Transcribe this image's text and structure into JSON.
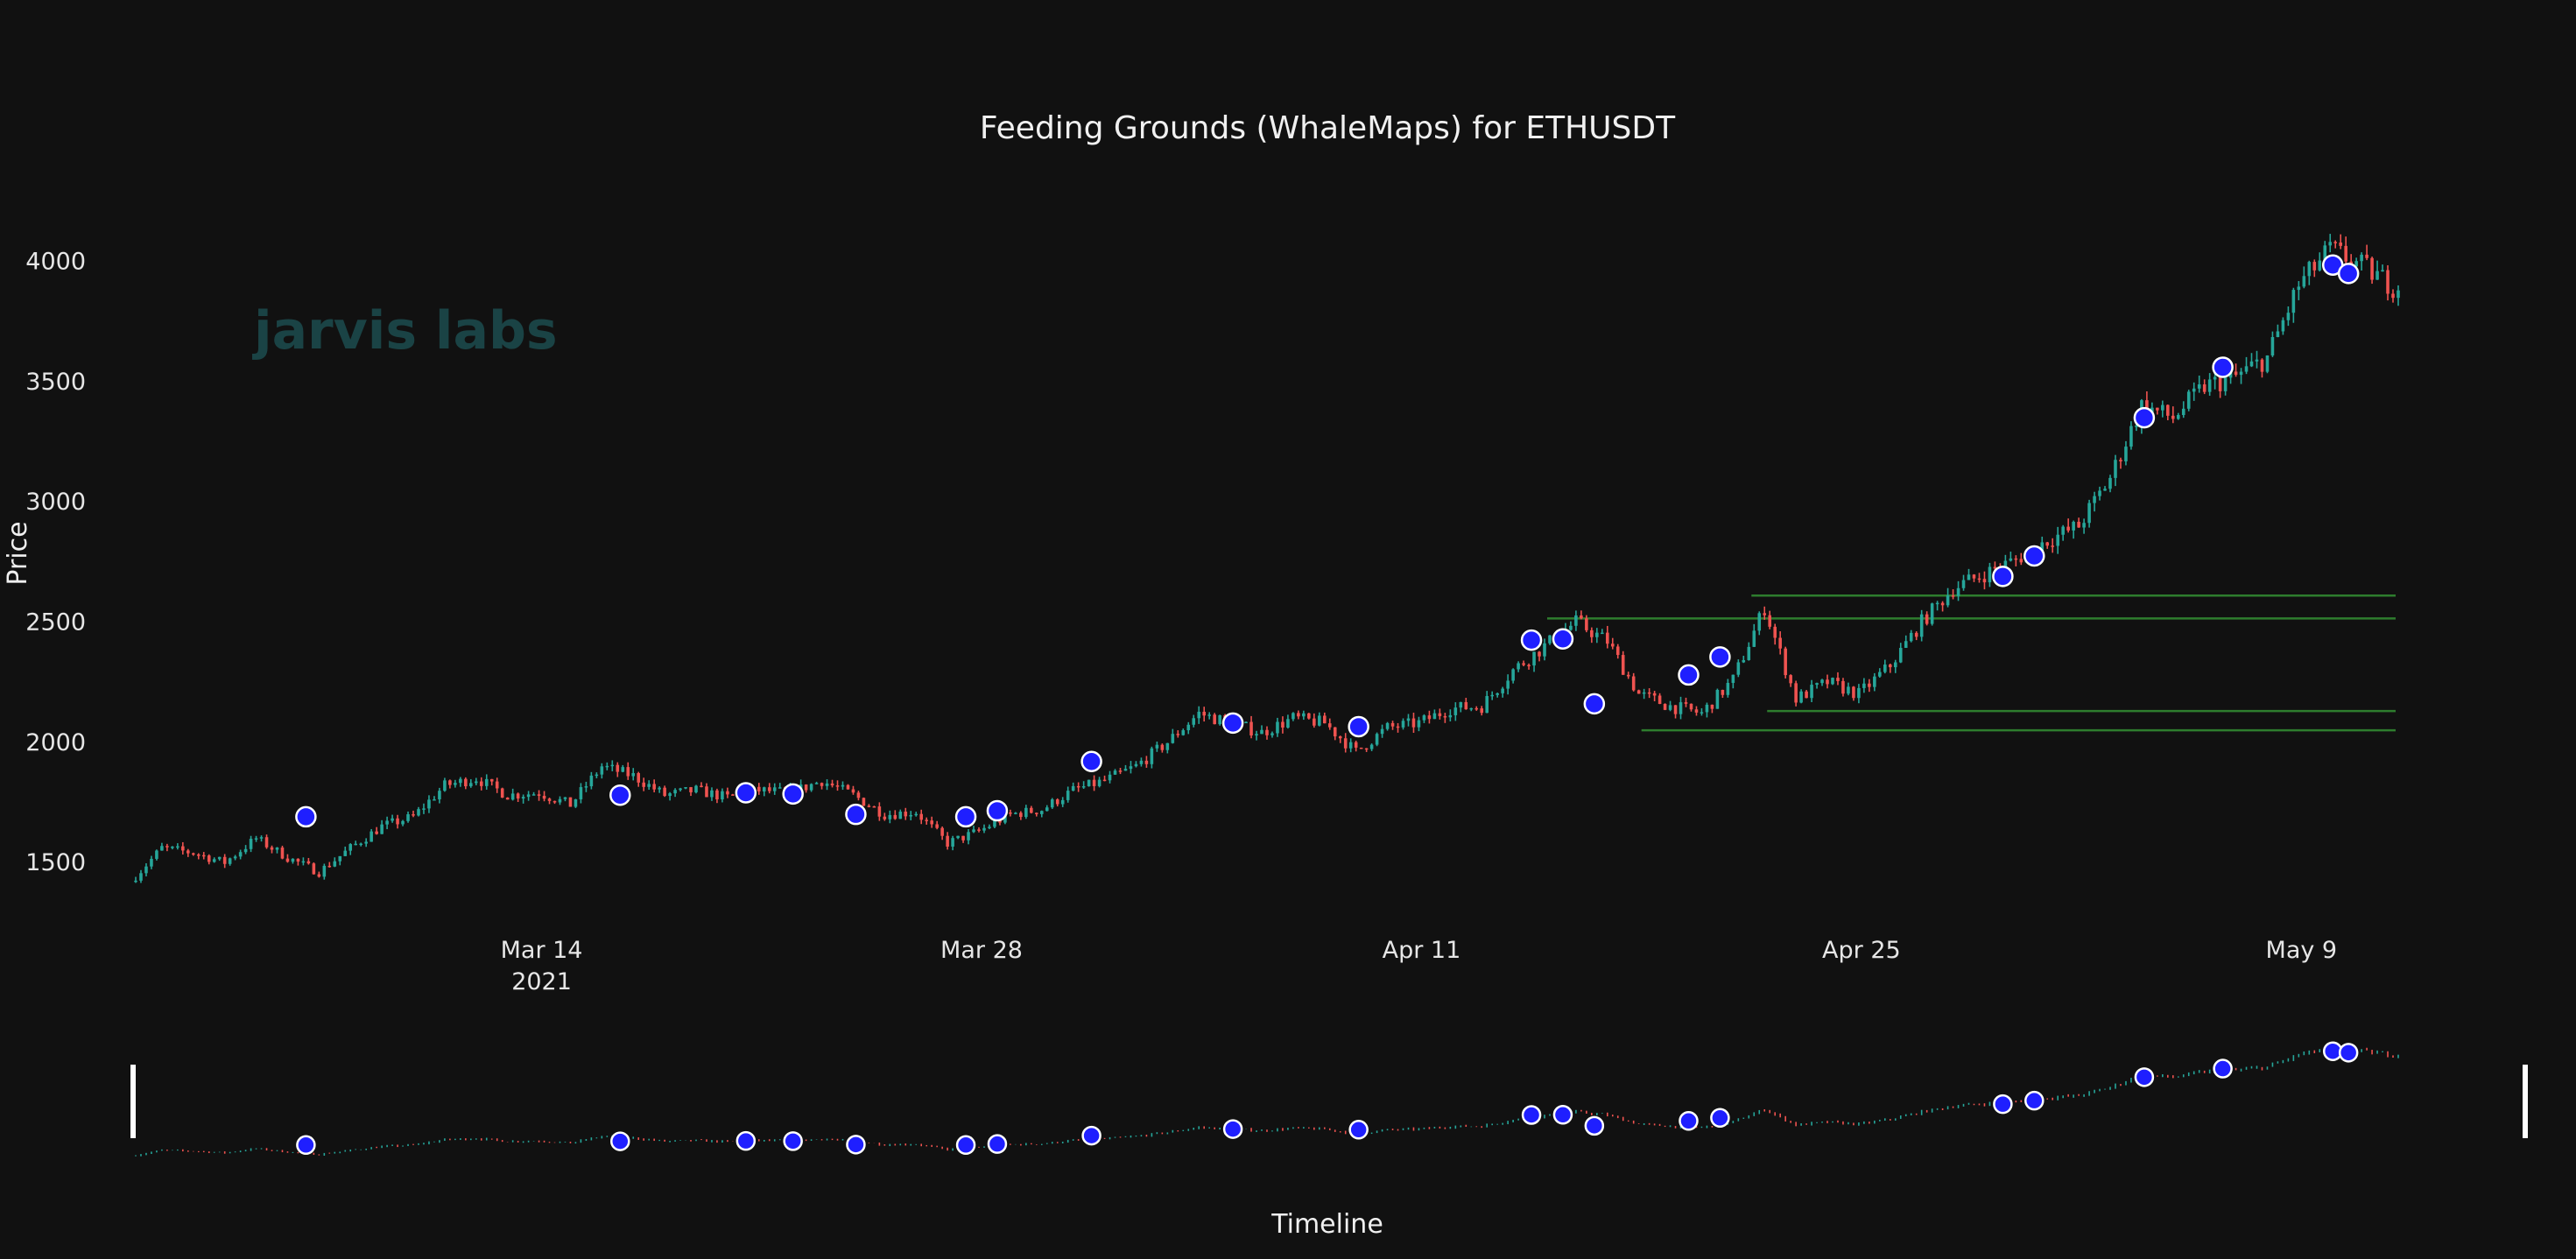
{
  "chart_data": {
    "type": "candlestick",
    "title": "Feeding Grounds (WhaleMaps) for ETHUSDT",
    "ylabel": "Price",
    "xlabel": "Timeline",
    "logo_text": "jarvis labs",
    "x_range": [
      "2021-03-01",
      "2021-05-12"
    ],
    "ylim": [
      1300,
      4250
    ],
    "y_ticks": [
      1500,
      2000,
      2500,
      3000,
      3500,
      4000
    ],
    "x_ticks": [
      {
        "date": "2021-03-14",
        "label": "Mar 14",
        "sublabel": "2021"
      },
      {
        "date": "2021-03-28",
        "label": "Mar 28",
        "sublabel": ""
      },
      {
        "date": "2021-04-11",
        "label": "Apr 11",
        "sublabel": ""
      },
      {
        "date": "2021-04-25",
        "label": "Apr 25",
        "sublabel": ""
      },
      {
        "date": "2021-05-09",
        "label": "May 9",
        "sublabel": ""
      }
    ],
    "colors": {
      "background": "#111111",
      "up": "#26a69a",
      "down": "#ef5350",
      "marker_fill": "#1f1fff",
      "marker_edge": "#ffffff",
      "zone_line": "#2e7d2e"
    },
    "price_path": [
      [
        "2021-03-01",
        1420
      ],
      [
        "2021-03-02",
        1560
      ],
      [
        "2021-03-03",
        1540
      ],
      [
        "2021-03-04",
        1500
      ],
      [
        "2021-03-05",
        1600
      ],
      [
        "2021-03-06",
        1520
      ],
      [
        "2021-03-07",
        1460
      ],
      [
        "2021-03-08",
        1560
      ],
      [
        "2021-03-09",
        1650
      ],
      [
        "2021-03-10",
        1690
      ],
      [
        "2021-03-11",
        1820
      ],
      [
        "2021-03-12",
        1850
      ],
      [
        "2021-03-13",
        1780
      ],
      [
        "2021-03-14",
        1790
      ],
      [
        "2021-03-15",
        1740
      ],
      [
        "2021-03-16",
        1900
      ],
      [
        "2021-03-17",
        1860
      ],
      [
        "2021-03-18",
        1780
      ],
      [
        "2021-03-19",
        1800
      ],
      [
        "2021-03-20",
        1770
      ],
      [
        "2021-03-21",
        1800
      ],
      [
        "2021-03-22",
        1790
      ],
      [
        "2021-03-23",
        1840
      ],
      [
        "2021-03-24",
        1780
      ],
      [
        "2021-03-25",
        1700
      ],
      [
        "2021-03-26",
        1710
      ],
      [
        "2021-03-27",
        1580
      ],
      [
        "2021-03-28",
        1630
      ],
      [
        "2021-03-29",
        1700
      ],
      [
        "2021-03-30",
        1720
      ],
      [
        "2021-03-31",
        1800
      ],
      [
        "2021-04-01",
        1840
      ],
      [
        "2021-04-02",
        1900
      ],
      [
        "2021-04-03",
        2000
      ],
      [
        "2021-04-04",
        2120
      ],
      [
        "2021-04-05",
        2080
      ],
      [
        "2021-04-06",
        2040
      ],
      [
        "2021-04-07",
        2100
      ],
      [
        "2021-04-08",
        2080
      ],
      [
        "2021-04-09",
        1960
      ],
      [
        "2021-04-10",
        2060
      ],
      [
        "2021-04-11",
        2080
      ],
      [
        "2021-04-12",
        2140
      ],
      [
        "2021-04-13",
        2150
      ],
      [
        "2021-04-14",
        2300
      ],
      [
        "2021-04-15",
        2400
      ],
      [
        "2021-04-16",
        2500
      ],
      [
        "2021-04-17",
        2420
      ],
      [
        "2021-04-18",
        2200
      ],
      [
        "2021-04-19",
        2150
      ],
      [
        "2021-04-20",
        2120
      ],
      [
        "2021-04-21",
        2260
      ],
      [
        "2021-04-22",
        2560
      ],
      [
        "2021-04-23",
        2180
      ],
      [
        "2021-04-24",
        2250
      ],
      [
        "2021-04-25",
        2200
      ],
      [
        "2021-04-26",
        2320
      ],
      [
        "2021-04-27",
        2500
      ],
      [
        "2021-04-28",
        2640
      ],
      [
        "2021-04-29",
        2700
      ],
      [
        "2021-04-30",
        2760
      ],
      [
        "2021-05-01",
        2840
      ],
      [
        "2021-05-02",
        2900
      ],
      [
        "2021-05-03",
        3100
      ],
      [
        "2021-05-04",
        3400
      ],
      [
        "2021-05-05",
        3350
      ],
      [
        "2021-05-06",
        3480
      ],
      [
        "2021-05-07",
        3520
      ],
      [
        "2021-05-08",
        3600
      ],
      [
        "2021-05-09",
        3900
      ],
      [
        "2021-05-10",
        4050
      ],
      [
        "2021-05-11",
        3980
      ],
      [
        "2021-05-12",
        3900
      ]
    ],
    "markers": [
      [
        "2021-03-06T12:00",
        1690
      ],
      [
        "2021-03-16T12:00",
        1780
      ],
      [
        "2021-03-20T12:00",
        1790
      ],
      [
        "2021-03-22T00:00",
        1785
      ],
      [
        "2021-03-24T00:00",
        1700
      ],
      [
        "2021-03-27T12:00",
        1690
      ],
      [
        "2021-03-28T12:00",
        1715
      ],
      [
        "2021-03-31T12:00",
        1920
      ],
      [
        "2021-04-05T00:00",
        2080
      ],
      [
        "2021-04-09T00:00",
        2065
      ],
      [
        "2021-04-14T12:00",
        2425
      ],
      [
        "2021-04-15T12:00",
        2430
      ],
      [
        "2021-04-16T12:00",
        2160
      ],
      [
        "2021-04-19T12:00",
        2280
      ],
      [
        "2021-04-20T12:00",
        2355
      ],
      [
        "2021-04-29T12:00",
        2690
      ],
      [
        "2021-04-30T12:00",
        2775
      ],
      [
        "2021-05-04T00:00",
        3350
      ],
      [
        "2021-05-06T12:00",
        3560
      ],
      [
        "2021-05-10T00:00",
        3985
      ],
      [
        "2021-05-10T12:00",
        3950
      ]
    ],
    "zones": [
      {
        "start": "2021-04-15T00:00",
        "end": "2021-05-12T00:00",
        "price": 2515
      },
      {
        "start": "2021-04-18T00:00",
        "end": "2021-05-12T00:00",
        "price": 2050
      },
      {
        "start": "2021-04-21T12:00",
        "end": "2021-05-12T00:00",
        "price": 2610
      },
      {
        "start": "2021-04-22T00:00",
        "end": "2021-05-12T00:00",
        "price": 2130
      }
    ]
  }
}
